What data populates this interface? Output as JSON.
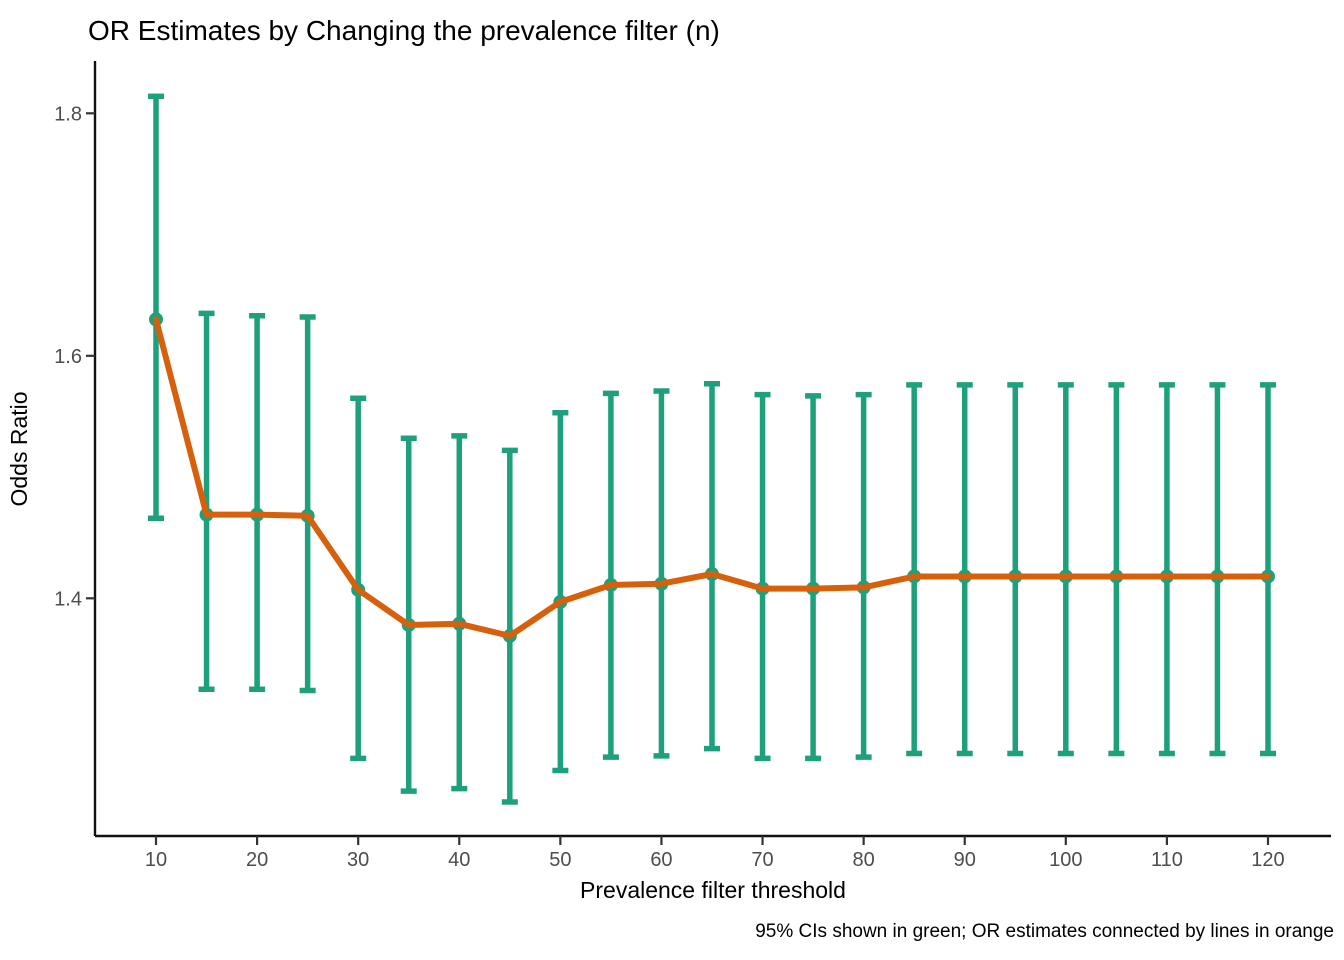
{
  "chart_data": {
    "type": "line",
    "title": "OR Estimates by Changing the prevalence filter (n)",
    "xlabel": "Prevalence filter threshold",
    "ylabel": "Odds Ratio",
    "caption": "95% CIs shown in green; OR estimates connected by lines in orange",
    "x": [
      10,
      15,
      20,
      25,
      30,
      35,
      40,
      45,
      50,
      55,
      60,
      65,
      70,
      75,
      80,
      85,
      90,
      95,
      100,
      105,
      110,
      115,
      120
    ],
    "series": [
      {
        "name": "OR estimate",
        "role": "estimate",
        "values": [
          1.63,
          1.469,
          1.469,
          1.468,
          1.407,
          1.378,
          1.379,
          1.369,
          1.397,
          1.411,
          1.412,
          1.42,
          1.408,
          1.408,
          1.409,
          1.418,
          1.418,
          1.418,
          1.418,
          1.418,
          1.418,
          1.418,
          1.418
        ]
      },
      {
        "name": "95% CI lower bound",
        "role": "ci_lower",
        "values": [
          1.466,
          1.325,
          1.325,
          1.324,
          1.268,
          1.241,
          1.243,
          1.232,
          1.258,
          1.269,
          1.27,
          1.276,
          1.268,
          1.268,
          1.269,
          1.272,
          1.272,
          1.272,
          1.272,
          1.272,
          1.272,
          1.272,
          1.272
        ]
      },
      {
        "name": "95% CI upper bound",
        "role": "ci_upper",
        "values": [
          1.814,
          1.635,
          1.633,
          1.632,
          1.565,
          1.532,
          1.534,
          1.522,
          1.553,
          1.569,
          1.571,
          1.577,
          1.568,
          1.567,
          1.568,
          1.576,
          1.576,
          1.576,
          1.576,
          1.576,
          1.576,
          1.576,
          1.576
        ]
      }
    ],
    "x_ticks": [
      10,
      20,
      30,
      40,
      50,
      60,
      70,
      80,
      90,
      100,
      110,
      120
    ],
    "y_ticks": [
      1.4,
      1.6,
      1.8
    ],
    "xlim": [
      4,
      126.5
    ],
    "ylim": [
      1.2,
      1.845
    ],
    "grid": false,
    "legend_position": "none",
    "colors": {
      "ci_green": "#1FA07C",
      "estimate_orange": "#D6600C",
      "tick_label": "#4D4D4D",
      "axis": "#111111"
    }
  }
}
